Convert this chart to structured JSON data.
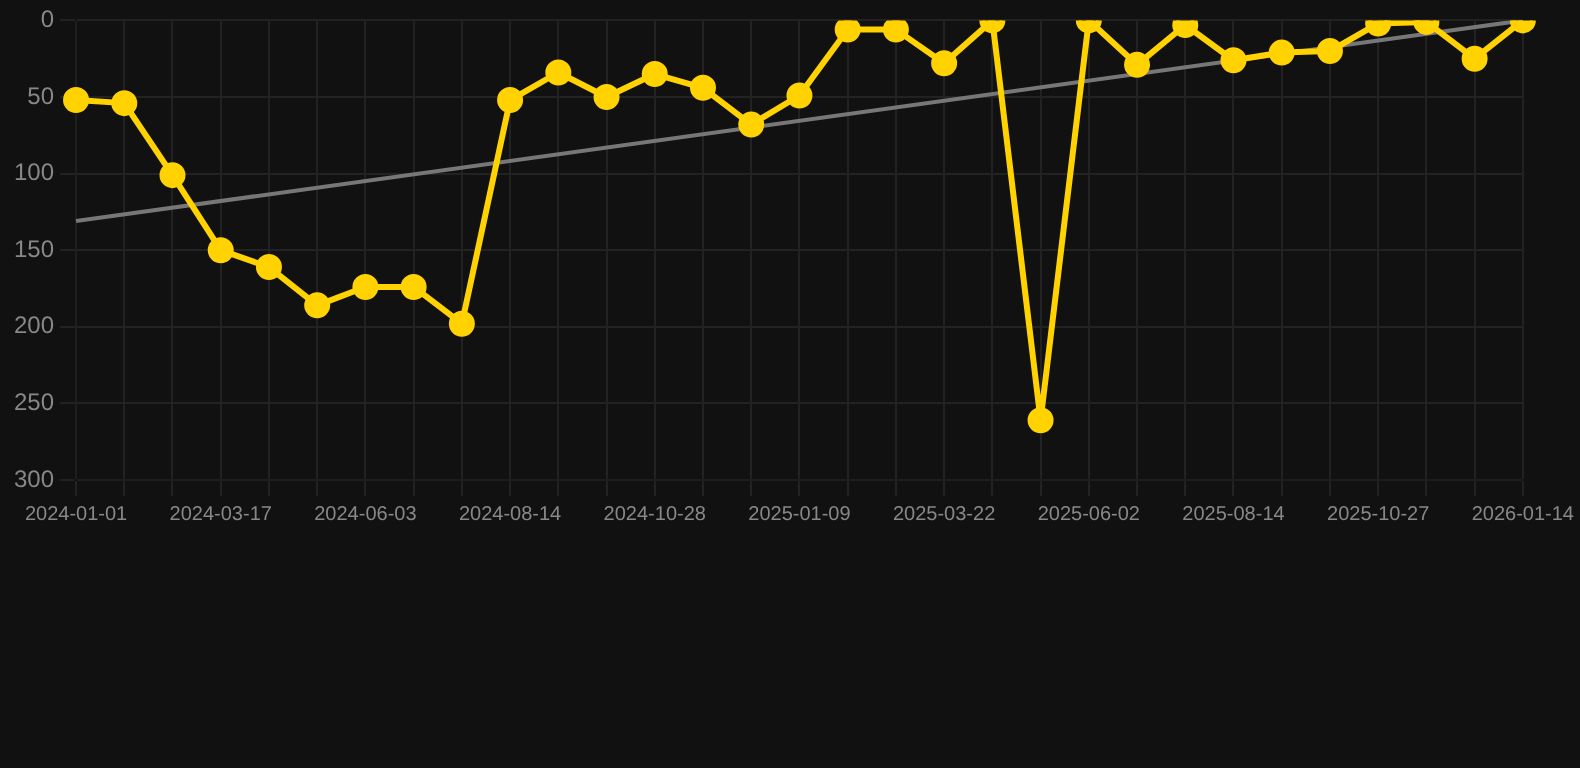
{
  "chart_data": {
    "type": "line",
    "categories": [
      "2024-01-01",
      null,
      null,
      "2024-03-17",
      null,
      null,
      "2024-06-03",
      null,
      null,
      "2024-08-14",
      null,
      null,
      "2024-10-28",
      null,
      null,
      "2025-01-09",
      null,
      null,
      "2025-03-22",
      null,
      null,
      "2025-06-02",
      null,
      null,
      "2025-08-14",
      null,
      null,
      "2025-10-27",
      null,
      null,
      "2026-01-14"
    ],
    "series": [
      {
        "color": "#ffd200",
        "marker": "circle",
        "values": [
          52,
          54,
          101,
          150,
          161,
          186,
          174,
          174,
          198,
          52,
          34,
          50,
          35,
          44,
          68,
          49,
          6,
          6,
          28,
          0,
          261,
          0,
          29,
          3,
          26,
          21,
          20,
          2,
          1,
          25,
          0
        ]
      },
      {
        "type": "line",
        "color": "#777777",
        "marker": "none",
        "values": [
          131,
          null,
          null,
          null,
          null,
          null,
          null,
          null,
          null,
          null,
          null,
          null,
          null,
          null,
          null,
          null,
          null,
          null,
          null,
          null,
          null,
          null,
          null,
          null,
          null,
          null,
          null,
          null,
          null,
          null,
          0
        ]
      }
    ],
    "ylim": [
      300,
      0
    ],
    "yticks": [
      0,
      50,
      100,
      150,
      200,
      250,
      300
    ],
    "grid": true,
    "legend": false
  }
}
